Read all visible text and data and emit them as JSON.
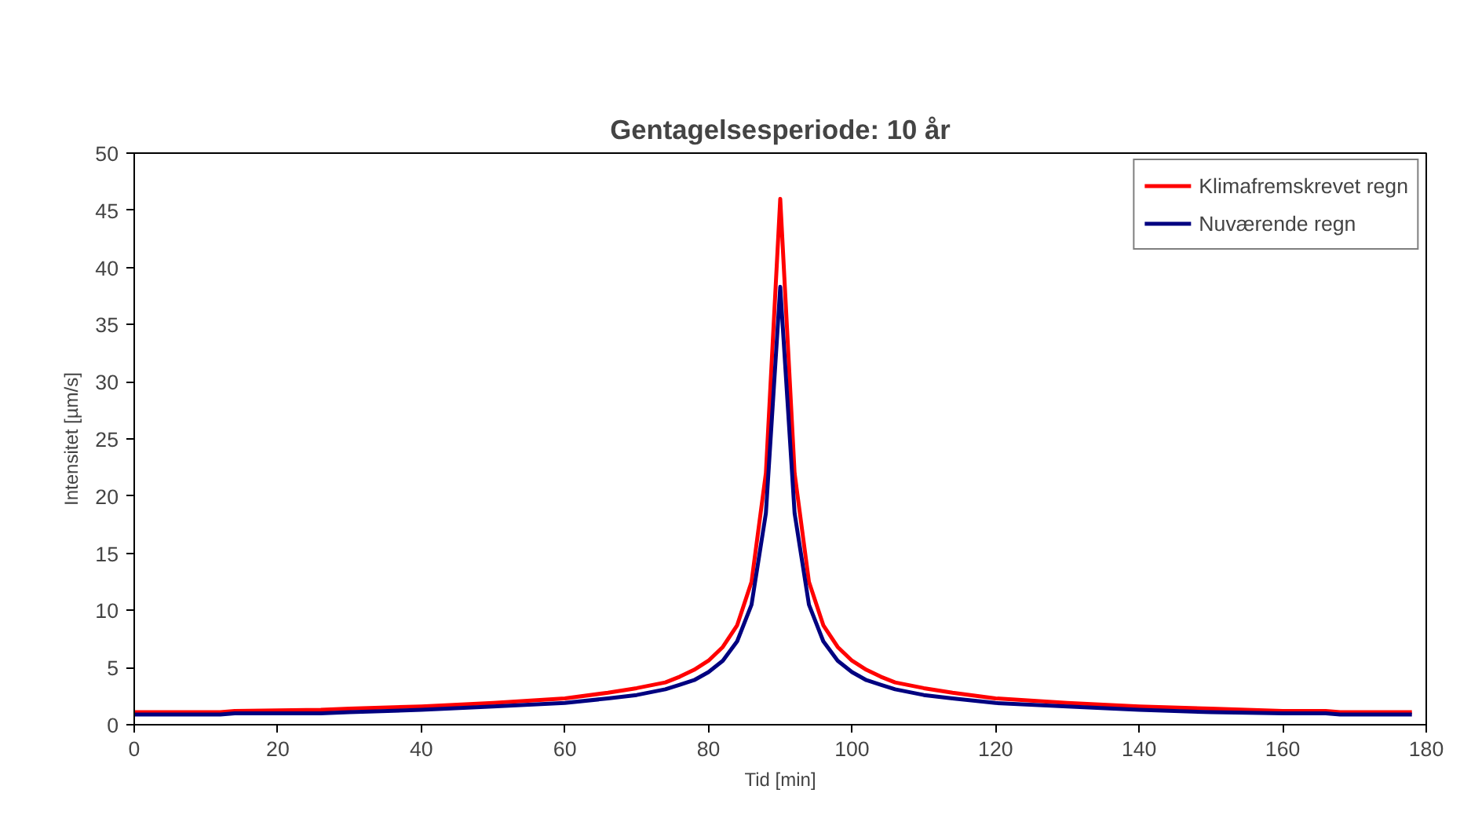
{
  "chart_data": {
    "type": "line",
    "title": "Gentagelsesperiode: 10 år",
    "xlabel": "Tid [min]",
    "ylabel": "Intensitet [µm/s]",
    "x": [
      0,
      12,
      14,
      26,
      30,
      40,
      50,
      60,
      66,
      70,
      74,
      76,
      78,
      80,
      82,
      84,
      86,
      88,
      90,
      92,
      94,
      96,
      98,
      100,
      102,
      104,
      106,
      110,
      114,
      120,
      130,
      140,
      150,
      160,
      166,
      168,
      178
    ],
    "series": [
      {
        "name": "Klimafremskrevet regn",
        "color": "#ff0000",
        "values": [
          1.1,
          1.1,
          1.2,
          1.3,
          1.4,
          1.6,
          1.9,
          2.3,
          2.8,
          3.2,
          3.7,
          4.2,
          4.8,
          5.6,
          6.8,
          8.7,
          12.5,
          22,
          46,
          22,
          12.5,
          8.7,
          6.8,
          5.6,
          4.8,
          4.2,
          3.7,
          3.2,
          2.8,
          2.3,
          1.9,
          1.6,
          1.4,
          1.2,
          1.2,
          1.1,
          1.1
        ]
      },
      {
        "name": "Nuværende regn",
        "color": "#000080",
        "values": [
          0.9,
          0.9,
          1.0,
          1.0,
          1.1,
          1.3,
          1.6,
          1.9,
          2.3,
          2.6,
          3.1,
          3.5,
          3.9,
          4.6,
          5.6,
          7.3,
          10.5,
          18.5,
          38.3,
          18.5,
          10.5,
          7.3,
          5.6,
          4.6,
          3.9,
          3.5,
          3.1,
          2.6,
          2.3,
          1.9,
          1.6,
          1.3,
          1.1,
          1.0,
          1.0,
          0.9,
          0.9
        ]
      }
    ],
    "xlim": [
      0,
      180
    ],
    "xticks": [
      0,
      20,
      40,
      60,
      80,
      100,
      120,
      140,
      160,
      180
    ],
    "ylim": [
      0,
      50
    ],
    "yticks": [
      0,
      5,
      10,
      15,
      20,
      25,
      30,
      35,
      40,
      45,
      50
    ],
    "grid": false,
    "legend": "top right",
    "marker": "none",
    "line_style": "solid"
  }
}
